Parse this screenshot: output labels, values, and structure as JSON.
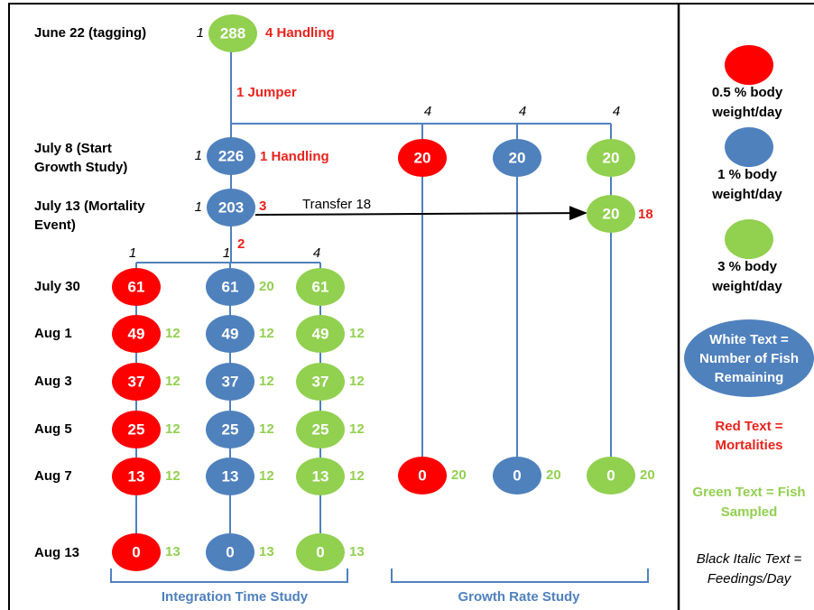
{
  "dates": [
    [
      "June 22 (tagging)"
    ],
    [
      "July 8 (Start",
      "Growth Study)"
    ],
    [
      "July 13 (Mortality",
      "Event)"
    ],
    [
      "July 30"
    ],
    [
      "Aug 1"
    ],
    [
      "Aug 3"
    ],
    [
      "Aug 5"
    ],
    [
      "Aug 7"
    ],
    [
      "Aug 13"
    ]
  ],
  "trunk": {
    "tagging": {
      "fish": 288,
      "feedings": 1,
      "mortalities": "4 Handling",
      "color": "#92d050"
    },
    "jumper": "1 Jumper",
    "start": {
      "fish": 226,
      "feedings": 1,
      "mortalities": "1 Handling",
      "color": "#4f81bd"
    },
    "event": {
      "fish": 203,
      "feedings": 1,
      "mortalities": 3,
      "color": "#4f81bd"
    },
    "split_mortalities": 2,
    "transfer": "Transfer 18"
  },
  "integration_study": {
    "title": "Integration Time Study",
    "groups": [
      {
        "color": "#ff0000",
        "feedings": 1,
        "fish": [
          61,
          49,
          37,
          25,
          13,
          0
        ],
        "sampled": [
          null,
          12,
          12,
          12,
          12,
          13
        ]
      },
      {
        "color": "#4f81bd",
        "feedings": 1,
        "fish": [
          61,
          49,
          37,
          25,
          13,
          0
        ],
        "sampled": [
          20,
          12,
          12,
          12,
          12,
          13
        ]
      },
      {
        "color": "#92d050",
        "feedings": 4,
        "fish": [
          61,
          49,
          37,
          25,
          13,
          0
        ],
        "sampled": [
          null,
          12,
          12,
          12,
          12,
          13
        ]
      }
    ]
  },
  "growth_study": {
    "title": "Growth Rate Study",
    "groups": [
      {
        "color": "#ff0000",
        "feedings": 4,
        "start": 20,
        "end": 0,
        "sampled": 20
      },
      {
        "color": "#4f81bd",
        "feedings": 4,
        "start": 20,
        "end": 0,
        "sampled": 20
      },
      {
        "color": "#92d050",
        "feedings": 4,
        "start": 20,
        "after_transfer": 20,
        "transfer_mortalities": 18,
        "end": 0,
        "sampled": 20
      }
    ]
  },
  "legend": [
    {
      "color": "#ff0000",
      "label": [
        "0.5 % body",
        "weight/day"
      ]
    },
    {
      "color": "#4f81bd",
      "label": [
        "1 % body",
        "weight/day"
      ]
    },
    {
      "color": "#92d050",
      "label": [
        "3 % body",
        "weight/day"
      ]
    }
  ],
  "key": {
    "white": [
      "White Text =",
      "Number of Fish",
      "Remaining"
    ],
    "red": [
      "Red Text =",
      "Mortalities"
    ],
    "green": [
      "Green Text = Fish",
      "Sampled"
    ],
    "black": [
      "Black Italic Text =",
      "Feedings/Day"
    ]
  }
}
